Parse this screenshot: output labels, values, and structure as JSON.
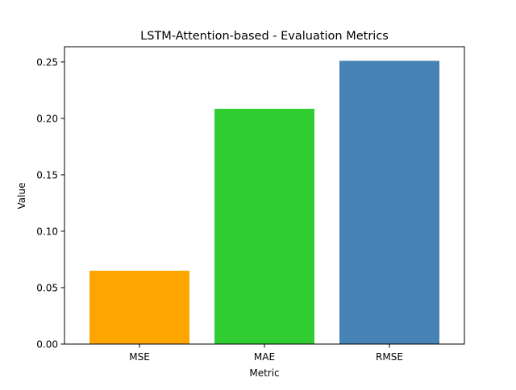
{
  "chart_data": {
    "type": "bar",
    "title": "LSTM-Attention-based - Evaluation Metrics",
    "xlabel": "Metric",
    "ylabel": "Value",
    "categories": [
      "MSE",
      "MAE",
      "RMSE"
    ],
    "values": [
      0.065,
      0.2085,
      0.251
    ],
    "colors": [
      "#FFA500",
      "#32CD32",
      "#4682B4"
    ],
    "ylim": [
      0,
      0.2635
    ],
    "yticks": [
      0.0,
      0.05,
      0.1,
      0.15,
      0.2,
      0.25
    ],
    "ytick_labels": [
      "0.00",
      "0.05",
      "0.10",
      "0.15",
      "0.20",
      "0.25"
    ],
    "grid": false,
    "legend": "none"
  }
}
